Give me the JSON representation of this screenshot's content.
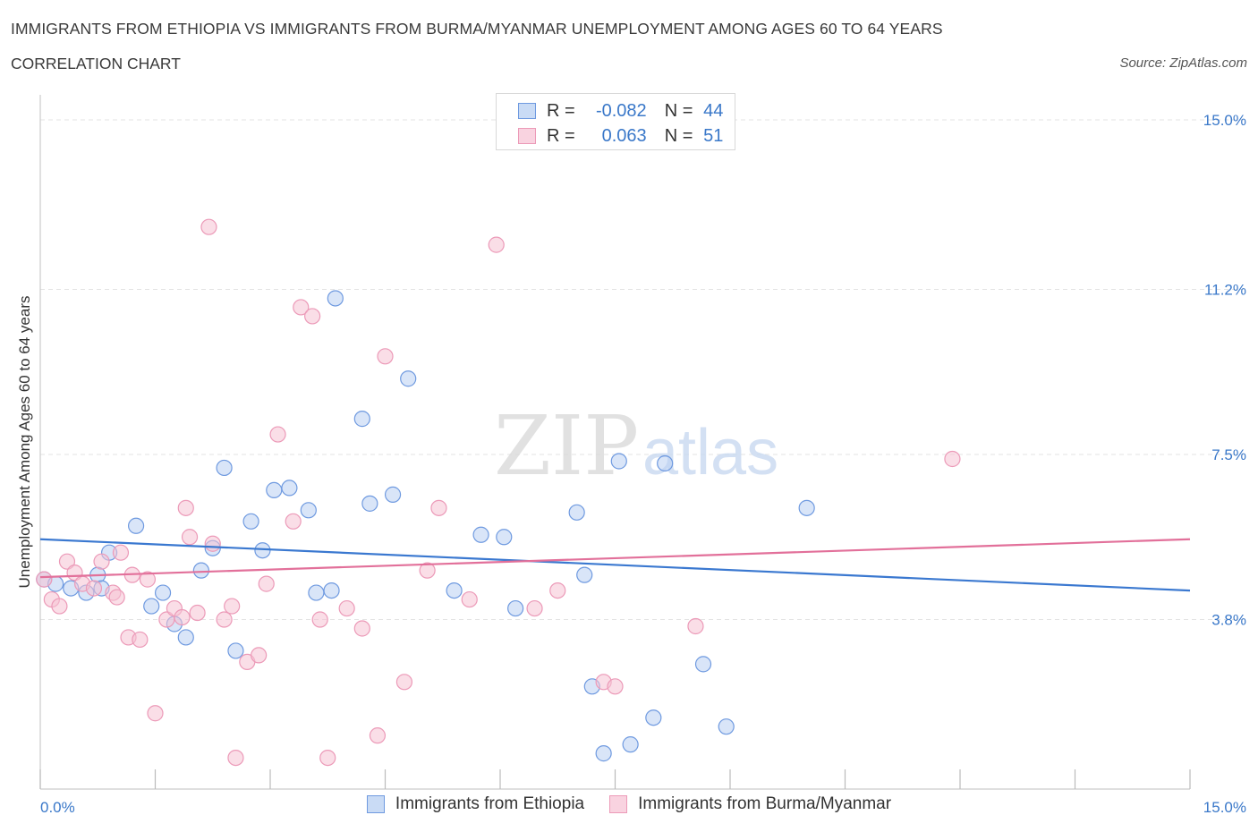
{
  "title": "IMMIGRANTS FROM ETHIOPIA VS IMMIGRANTS FROM BURMA/MYANMAR UNEMPLOYMENT AMONG AGES 60 TO 64 YEARS",
  "subtitle": "CORRELATION CHART",
  "source": "Source: ZipAtlas.com",
  "watermark": {
    "zip": "ZIP",
    "atlas": "atlas"
  },
  "colors": {
    "blue": "#4a7fd0",
    "blue_fill": "#b9d0f2",
    "pink": "#e2709a",
    "pink_fill": "#f6c2d4",
    "axis_text": "#3a78c9",
    "grid": "#e3e3e3"
  },
  "legend": {
    "rows": [
      {
        "r_label": "R =",
        "r_value": "-0.082",
        "n_label": "N =",
        "n_value": "44"
      },
      {
        "r_label": "R =",
        "r_value": "0.063",
        "n_label": "N =",
        "n_value": "51"
      }
    ]
  },
  "chart_data": {
    "type": "scatter",
    "xlabel": "",
    "ylabel": "Unemployment Among Ages 60 to 64 years",
    "xlim": [
      0,
      15
    ],
    "ylim": [
      0,
      15
    ],
    "x_tick_labels": [
      "0.0%",
      "15.0%"
    ],
    "y_ticks": [
      3.8,
      7.5,
      11.2,
      15.0
    ],
    "y_tick_labels": [
      "3.8%",
      "7.5%",
      "11.2%",
      "15.0%"
    ],
    "grid": true,
    "legend_position": "bottom",
    "series": [
      {
        "name": "Immigrants from Ethiopia",
        "color": "#4a7fd0",
        "trend": {
          "x": [
            0,
            15
          ],
          "y": [
            5.6,
            4.45
          ]
        },
        "points": [
          [
            0.05,
            4.7
          ],
          [
            0.2,
            4.6
          ],
          [
            0.4,
            4.5
          ],
          [
            0.6,
            4.4
          ],
          [
            0.75,
            4.8
          ],
          [
            0.8,
            4.5
          ],
          [
            0.9,
            5.3
          ],
          [
            1.25,
            5.9
          ],
          [
            1.45,
            4.1
          ],
          [
            1.6,
            4.4
          ],
          [
            1.75,
            3.7
          ],
          [
            1.9,
            3.4
          ],
          [
            2.1,
            4.9
          ],
          [
            2.25,
            5.4
          ],
          [
            2.4,
            7.2
          ],
          [
            2.55,
            3.1
          ],
          [
            2.75,
            6.0
          ],
          [
            2.9,
            5.35
          ],
          [
            3.05,
            6.7
          ],
          [
            3.25,
            6.75
          ],
          [
            3.5,
            6.25
          ],
          [
            3.6,
            4.4
          ],
          [
            3.8,
            4.45
          ],
          [
            3.85,
            11.0
          ],
          [
            4.2,
            8.3
          ],
          [
            4.3,
            6.4
          ],
          [
            4.6,
            6.6
          ],
          [
            4.8,
            9.2
          ],
          [
            5.4,
            4.45
          ],
          [
            5.75,
            5.7
          ],
          [
            6.05,
            5.65
          ],
          [
            6.2,
            4.05
          ],
          [
            7.0,
            6.2
          ],
          [
            7.1,
            4.8
          ],
          [
            7.2,
            2.3
          ],
          [
            7.35,
            0.8
          ],
          [
            7.55,
            7.35
          ],
          [
            7.7,
            1.0
          ],
          [
            8.0,
            1.6
          ],
          [
            8.15,
            7.3
          ],
          [
            8.65,
            2.8
          ],
          [
            8.95,
            1.4
          ],
          [
            10.0,
            6.3
          ],
          [
            6.5,
            15.0
          ]
        ]
      },
      {
        "name": "Immigrants from Burma/Myanmar",
        "color": "#e2709a",
        "trend": {
          "x": [
            0,
            15
          ],
          "y": [
            4.75,
            5.6
          ]
        },
        "points": [
          [
            0.05,
            4.7
          ],
          [
            0.15,
            4.25
          ],
          [
            0.25,
            4.1
          ],
          [
            0.35,
            5.1
          ],
          [
            0.45,
            4.85
          ],
          [
            0.55,
            4.6
          ],
          [
            0.7,
            4.5
          ],
          [
            0.8,
            5.1
          ],
          [
            0.95,
            4.4
          ],
          [
            1.0,
            4.3
          ],
          [
            1.05,
            5.3
          ],
          [
            1.15,
            3.4
          ],
          [
            1.2,
            4.8
          ],
          [
            1.3,
            3.35
          ],
          [
            1.4,
            4.7
          ],
          [
            1.5,
            1.7
          ],
          [
            1.65,
            3.8
          ],
          [
            1.75,
            4.05
          ],
          [
            1.85,
            3.85
          ],
          [
            1.9,
            6.3
          ],
          [
            1.95,
            5.65
          ],
          [
            2.05,
            3.95
          ],
          [
            2.2,
            12.6
          ],
          [
            2.25,
            5.5
          ],
          [
            2.4,
            3.8
          ],
          [
            2.5,
            4.1
          ],
          [
            2.55,
            0.7
          ],
          [
            2.7,
            2.85
          ],
          [
            2.85,
            3.0
          ],
          [
            2.95,
            4.6
          ],
          [
            3.1,
            7.95
          ],
          [
            3.3,
            6.0
          ],
          [
            3.4,
            10.8
          ],
          [
            3.55,
            10.6
          ],
          [
            3.65,
            3.8
          ],
          [
            3.75,
            0.7
          ],
          [
            4.0,
            4.05
          ],
          [
            4.2,
            3.6
          ],
          [
            4.4,
            1.2
          ],
          [
            4.5,
            9.7
          ],
          [
            4.75,
            2.4
          ],
          [
            5.05,
            4.9
          ],
          [
            5.2,
            6.3
          ],
          [
            5.6,
            4.25
          ],
          [
            5.95,
            12.2
          ],
          [
            6.45,
            4.05
          ],
          [
            6.75,
            4.45
          ],
          [
            7.35,
            2.4
          ],
          [
            7.5,
            2.3
          ],
          [
            8.55,
            3.65
          ],
          [
            11.9,
            7.4
          ]
        ]
      }
    ]
  },
  "bottom_legend": [
    {
      "label": "Immigrants from Ethiopia"
    },
    {
      "label": "Immigrants from Burma/Myanmar"
    }
  ]
}
